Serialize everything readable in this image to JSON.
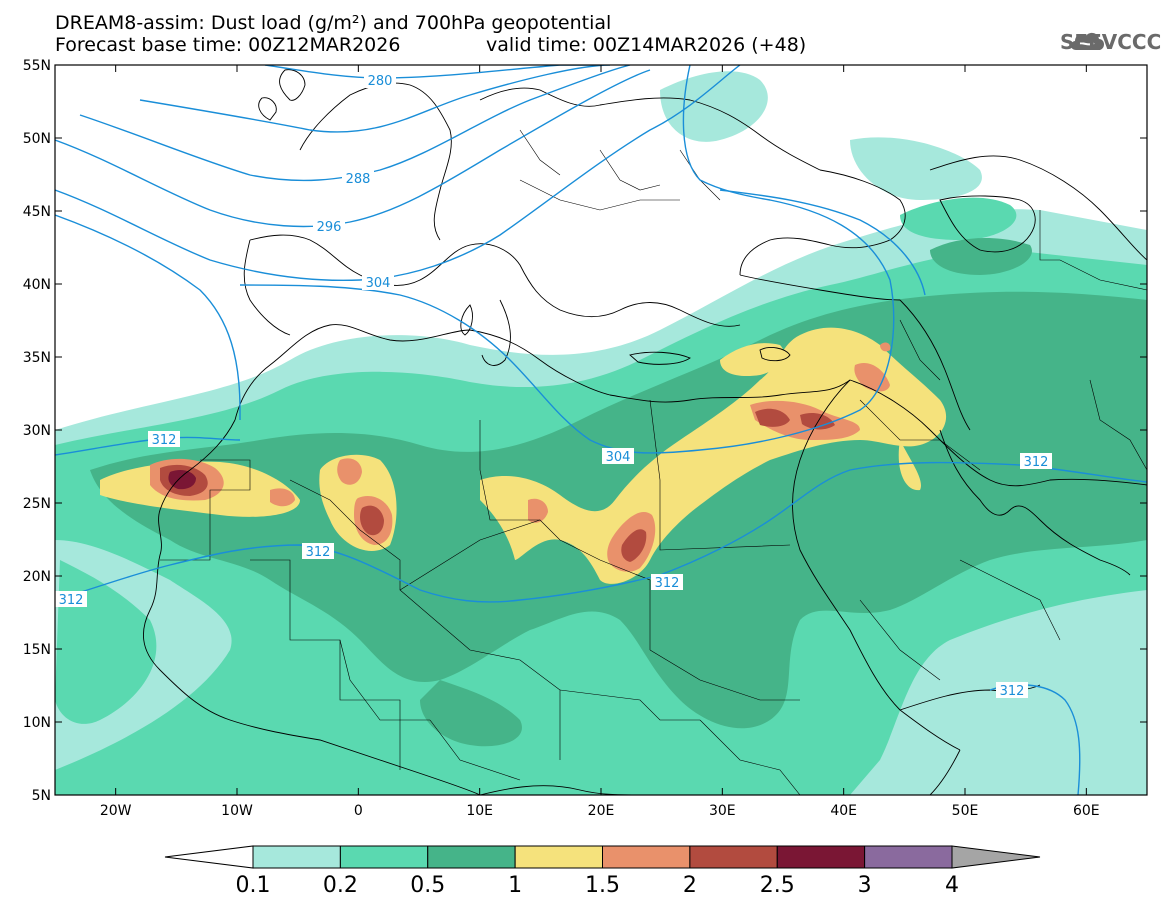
{
  "title": {
    "line1": "DREAM8-assim: Dust load (g/m²) and 700hPa geopotential",
    "line2_base": "Forecast base time: 00Z12MAR2026",
    "line2_valid": "valid time: 00Z14MAR2026 (+48)"
  },
  "logo": {
    "text": "SEEVCCC",
    "icon": "cloud-logo-icon"
  },
  "map": {
    "lon_range": [
      -25,
      65
    ],
    "lat_range": [
      5,
      55
    ],
    "lon_ticks": [
      {
        "lon": -20,
        "label": "20W"
      },
      {
        "lon": -10,
        "label": "10W"
      },
      {
        "lon": 0,
        "label": "0"
      },
      {
        "lon": 10,
        "label": "10E"
      },
      {
        "lon": 20,
        "label": "20E"
      },
      {
        "lon": 30,
        "label": "30E"
      },
      {
        "lon": 40,
        "label": "40E"
      },
      {
        "lon": 50,
        "label": "50E"
      },
      {
        "lon": 60,
        "label": "60E"
      }
    ],
    "lat_ticks": [
      {
        "lat": 55,
        "label": "55N"
      },
      {
        "lat": 50,
        "label": "50N"
      },
      {
        "lat": 45,
        "label": "45N"
      },
      {
        "lat": 40,
        "label": "40N"
      },
      {
        "lat": 35,
        "label": "35N"
      },
      {
        "lat": 30,
        "label": "30N"
      },
      {
        "lat": 25,
        "label": "25N"
      },
      {
        "lat": 20,
        "label": "20N"
      },
      {
        "lat": 15,
        "label": "15N"
      },
      {
        "lat": 10,
        "label": "10N"
      },
      {
        "lat": 5,
        "label": "5N"
      }
    ],
    "contour_color": "#1a8ed8",
    "geopotential_contours": [
      {
        "value": 280,
        "label": "280",
        "label_lonlat": [
          -10,
          54
        ]
      },
      {
        "value": 288,
        "label": "288",
        "label_lonlat": [
          -25,
          48
        ]
      },
      {
        "value": 296,
        "label": "296",
        "label_lonlat": [
          -23,
          45.5
        ]
      },
      {
        "value": 304,
        "label": "304",
        "label_lonlat": [
          22,
          27
        ]
      },
      {
        "value": 304,
        "label": "304",
        "label_lonlat": [
          -23,
          41
        ]
      },
      {
        "value": 312,
        "label": "312",
        "label_lonlat": [
          -17,
          29.5
        ]
      },
      {
        "value": 312,
        "label": "312",
        "label_lonlat": [
          -4,
          21.5
        ]
      },
      {
        "value": 312,
        "label": "312",
        "label_lonlat": [
          -22,
          18.5
        ]
      },
      {
        "value": 312,
        "label": "312",
        "label_lonlat": [
          25,
          19.8
        ]
      },
      {
        "value": 312,
        "label": "312",
        "label_lonlat": [
          57,
          26.5
        ]
      },
      {
        "value": 312,
        "label": "312",
        "label_lonlat": [
          52,
          12
        ]
      }
    ]
  },
  "colorbar": {
    "levels": [
      "0.1",
      "0.2",
      "0.5",
      "1",
      "1.5",
      "2",
      "2.5",
      "3",
      "4"
    ],
    "colors": [
      "#ffffff",
      "#a6e8dc",
      "#5ad9b0",
      "#45b489",
      "#f5e27c",
      "#e9916b",
      "#b24b3f",
      "#7a1634",
      "#8a6a9e",
      "#a5a5a5"
    ]
  }
}
